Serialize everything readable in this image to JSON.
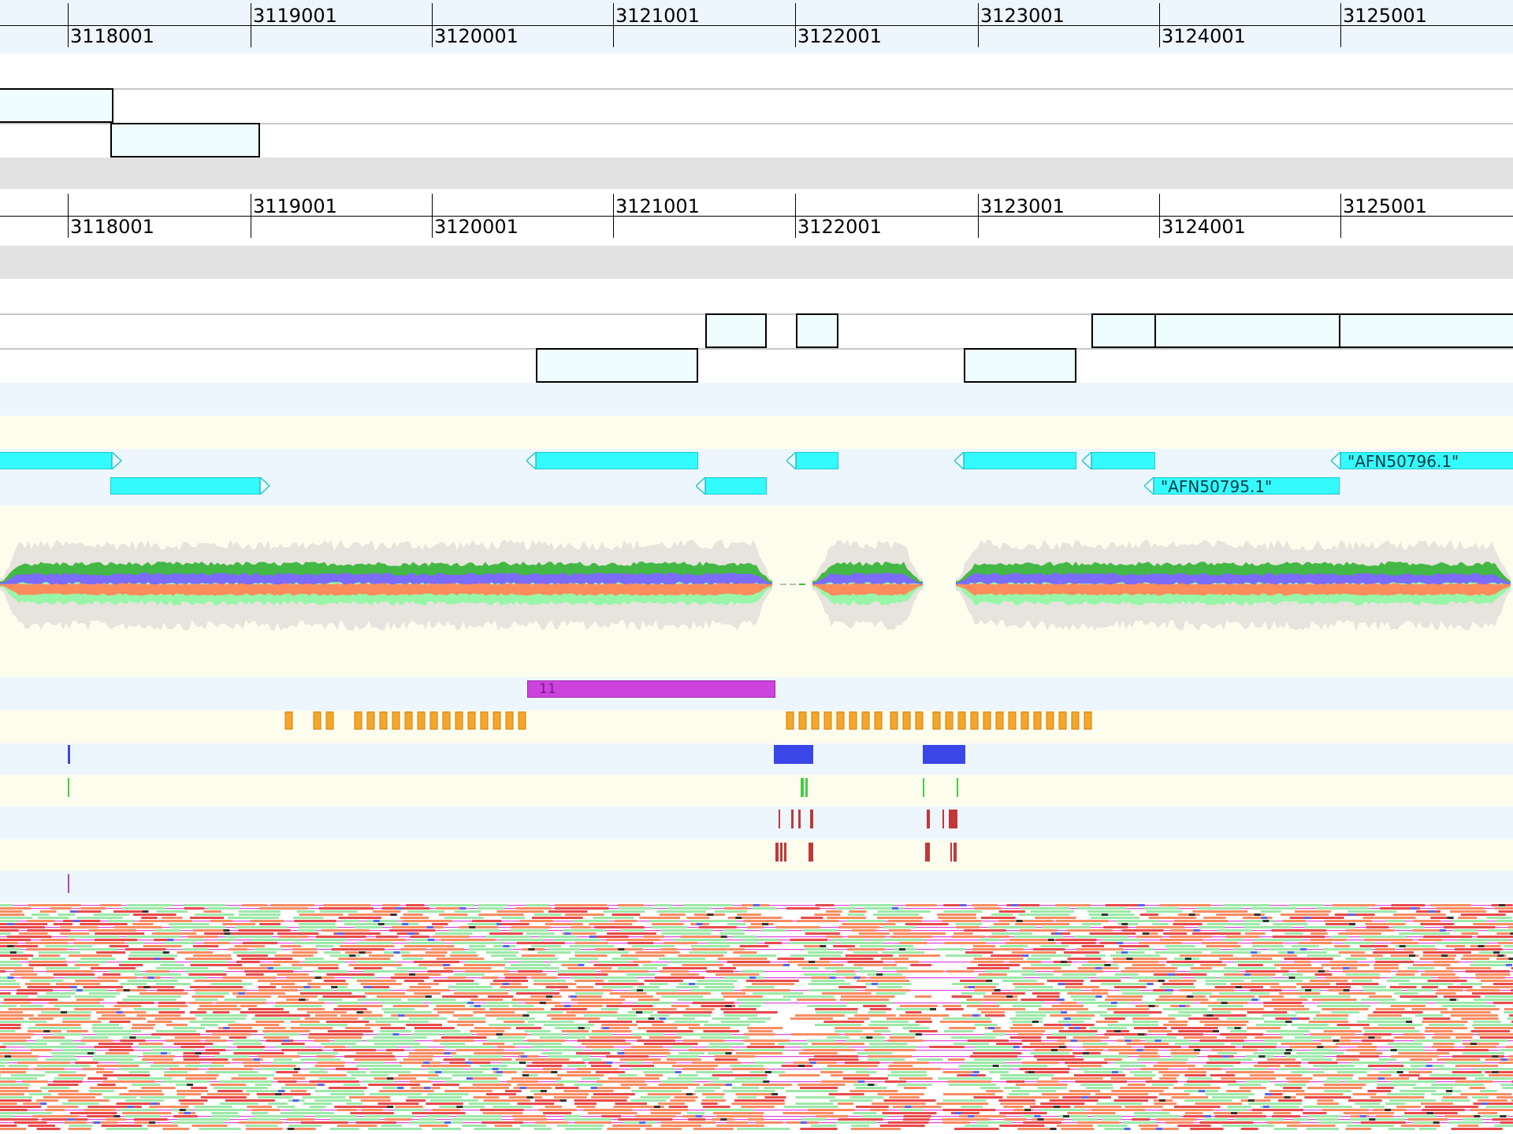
{
  "ruler_ticks": {
    "upper": [
      "3119001",
      "3121001",
      "3123001",
      "3125001"
    ],
    "lower": [
      "3118001",
      "3120001",
      "3122001",
      "3124001"
    ]
  },
  "gene_labels": {
    "afn50796": "\"AFN50796.1\"",
    "afn50795": "\"AFN50795.1\""
  },
  "feature_count_label": "11",
  "colors": {
    "band_blue": "#eef6fd",
    "band_yellow": "#fdfdee",
    "band_gray": "#e2e2e2",
    "gene_box_fill": "#effdff",
    "cds_fill": "#33fbfd",
    "coverage_green": "#44b844",
    "coverage_blue": "#7b6cfa",
    "coverage_orange": "#fd8c5c",
    "coverage_lightgreen": "#98f6a8",
    "coverage_gray": "#e6e4dc",
    "magenta": "#cc44dd",
    "orange_marks": "#f4a62a",
    "dark_blue": "#3a46e8",
    "bright_green": "#44cc44",
    "dark_red": "#c03838",
    "read_green": "#9ce8a8",
    "read_orange": "#f88c62",
    "read_red": "#e84a4a",
    "read_magenta": "#dd44dd"
  },
  "icons": [
    "cds-arrow-left-icon",
    "cds-arrow-right-icon"
  ]
}
